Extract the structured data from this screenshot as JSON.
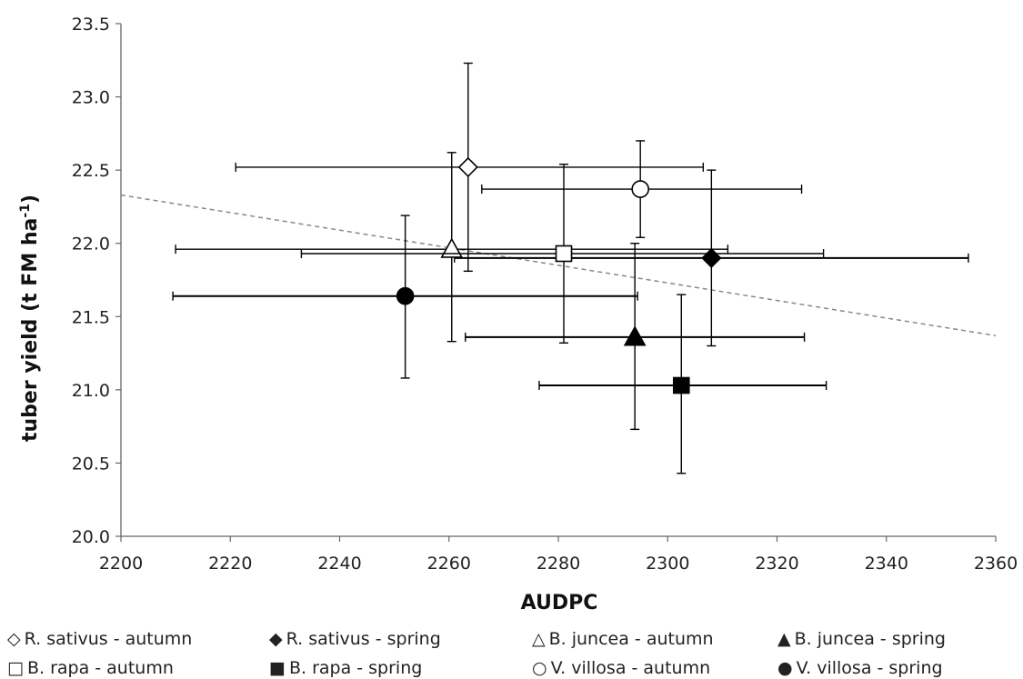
{
  "chart_data": {
    "type": "scatter",
    "title": "",
    "xlabel": "AUDPC",
    "ylabel_main": "tuber yield (t FM ha",
    "ylabel_sup": "-1",
    "ylabel_tail": ")",
    "xlim": [
      2200,
      2360
    ],
    "ylim": [
      20.0,
      23.5
    ],
    "xticks": [
      2200,
      2220,
      2240,
      2260,
      2280,
      2300,
      2320,
      2340,
      2360
    ],
    "yticks": [
      "20.0",
      "20.5",
      "21.0",
      "21.5",
      "22.0",
      "22.5",
      "23.0",
      "23.5"
    ],
    "ytick_values": [
      20.0,
      20.5,
      21.0,
      21.5,
      22.0,
      22.5,
      23.0,
      23.5
    ],
    "grid": false,
    "legend_placement": "bottom",
    "trendline": {
      "style": "dashed",
      "color": "#888888",
      "y_at_xmin": 22.33,
      "y_at_xmax": 21.37
    },
    "series": [
      {
        "name": "R. sativus - autumn",
        "marker": "diamond",
        "filled": false,
        "x": 2263.5,
        "y": 22.52,
        "xerr": [
          2221,
          2306.5
        ],
        "yerr": [
          21.81,
          23.23
        ]
      },
      {
        "name": "R. sativus - spring",
        "marker": "diamond",
        "filled": true,
        "x": 2308,
        "y": 21.9,
        "xerr": [
          2261,
          2355
        ],
        "yerr": [
          21.3,
          22.5
        ]
      },
      {
        "name": "B. juncea - autumn",
        "marker": "triangle",
        "filled": false,
        "x": 2260.5,
        "y": 21.96,
        "xerr": [
          2210,
          2311
        ],
        "yerr": [
          21.33,
          22.62
        ]
      },
      {
        "name": "B. juncea - spring",
        "marker": "triangle",
        "filled": true,
        "x": 2294,
        "y": 21.36,
        "xerr": [
          2263,
          2325
        ],
        "yerr": [
          20.73,
          22.0
        ]
      },
      {
        "name": "B. rapa - autumn",
        "marker": "square",
        "filled": false,
        "x": 2281,
        "y": 21.93,
        "xerr": [
          2233,
          2328.5
        ],
        "yerr": [
          21.32,
          22.54
        ]
      },
      {
        "name": "B. rapa - spring",
        "marker": "square",
        "filled": true,
        "x": 2302.5,
        "y": 21.03,
        "xerr": [
          2276.5,
          2329
        ],
        "yerr": [
          20.43,
          21.65
        ]
      },
      {
        "name": "V. villosa - autumn",
        "marker": "circle",
        "filled": false,
        "x": 2295,
        "y": 22.37,
        "xerr": [
          2266,
          2324.5
        ],
        "yerr": [
          22.04,
          22.7
        ]
      },
      {
        "name": "V. villosa - spring",
        "marker": "circle",
        "filled": true,
        "x": 2252,
        "y": 21.64,
        "xerr": [
          2209.5,
          2294.5
        ],
        "yerr": [
          21.08,
          22.19
        ]
      }
    ]
  },
  "legend": {
    "items": [
      {
        "glyph": "◇",
        "label": "R. sativus - autumn"
      },
      {
        "glyph": "◆",
        "label": "R. sativus - spring"
      },
      {
        "glyph": "△",
        "label": "B. juncea - autumn"
      },
      {
        "glyph": "▲",
        "label": "B. juncea - spring"
      },
      {
        "glyph": "□",
        "label": "B. rapa - autumn"
      },
      {
        "glyph": "■",
        "label": "B. rapa - spring"
      },
      {
        "glyph": "○",
        "label": "V. villosa - autumn"
      },
      {
        "glyph": "●",
        "label": "V. villosa - spring"
      }
    ]
  }
}
